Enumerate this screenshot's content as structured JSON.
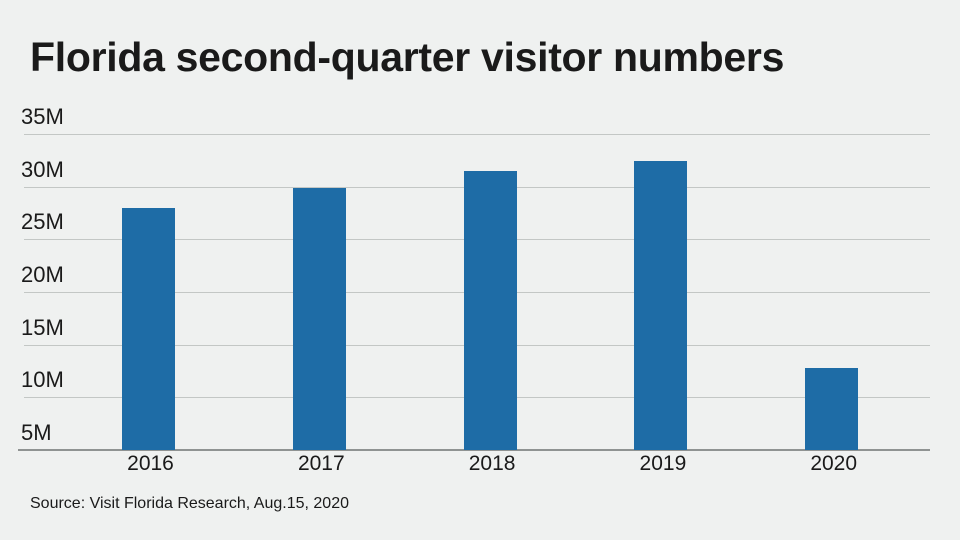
{
  "page": {
    "background_color": "#eff1f0",
    "text_color": "#1a1a1a"
  },
  "chart_data": {
    "type": "bar",
    "title": "Florida second-quarter visitor numbers",
    "categories": [
      "2016",
      "2017",
      "2018",
      "2019",
      "2020"
    ],
    "values": [
      28.0,
      29.9,
      31.5,
      32.4,
      12.8
    ],
    "value_unit": "millions of visitors",
    "ylim": [
      5,
      35
    ],
    "yticks": [
      35,
      30,
      25,
      20,
      15,
      10,
      5
    ],
    "ytick_labels": [
      "35M",
      "30M",
      "25M",
      "20M",
      "15M",
      "10M",
      "5M"
    ],
    "grid": true,
    "legend": "none",
    "bar_color": "#1e6ca6",
    "gridline_color": "#c3c7c5",
    "baseline_color": "#8f9392",
    "source": "Source: Visit Florida Research, Aug.15, 2020"
  }
}
